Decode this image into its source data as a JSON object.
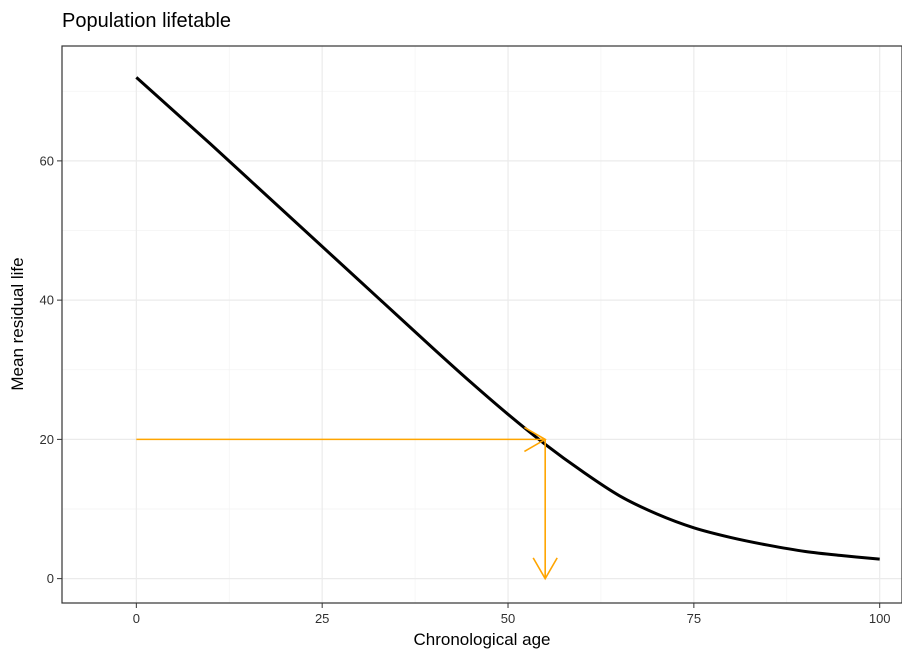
{
  "chart_data": {
    "type": "line",
    "title": "Population lifetable",
    "xlabel": "Chronological age",
    "ylabel": "Mean residual life",
    "xlim": [
      -10,
      103
    ],
    "ylim": [
      -3.5,
      76.5
    ],
    "x_ticks": [
      0,
      25,
      50,
      75,
      100
    ],
    "x_tick_labels": [
      "0",
      "25",
      "50",
      "75",
      "100"
    ],
    "y_ticks": [
      0,
      20,
      40,
      60
    ],
    "y_tick_labels": [
      "0",
      "20",
      "40",
      "60"
    ],
    "grid": true,
    "series": [
      {
        "color": "#000000",
        "x": [
          0,
          5,
          10,
          15,
          20,
          25,
          30,
          35,
          40,
          45,
          50,
          55,
          60,
          65,
          70,
          75,
          80,
          85,
          90,
          95,
          100
        ],
        "y": [
          72,
          67.2,
          62.4,
          57.5,
          52.6,
          47.7,
          42.8,
          37.9,
          33.0,
          28.2,
          23.6,
          19.3,
          15.4,
          11.9,
          9.3,
          7.3,
          5.9,
          4.8,
          3.9,
          3.3,
          2.8
        ]
      }
    ],
    "annotations": [
      {
        "type": "arrow",
        "color": "#FFA500",
        "from": [
          0,
          20
        ],
        "to": [
          55,
          20
        ]
      },
      {
        "type": "arrow",
        "color": "#FFA500",
        "from": [
          55,
          20
        ],
        "to": [
          55,
          0
        ]
      }
    ]
  }
}
